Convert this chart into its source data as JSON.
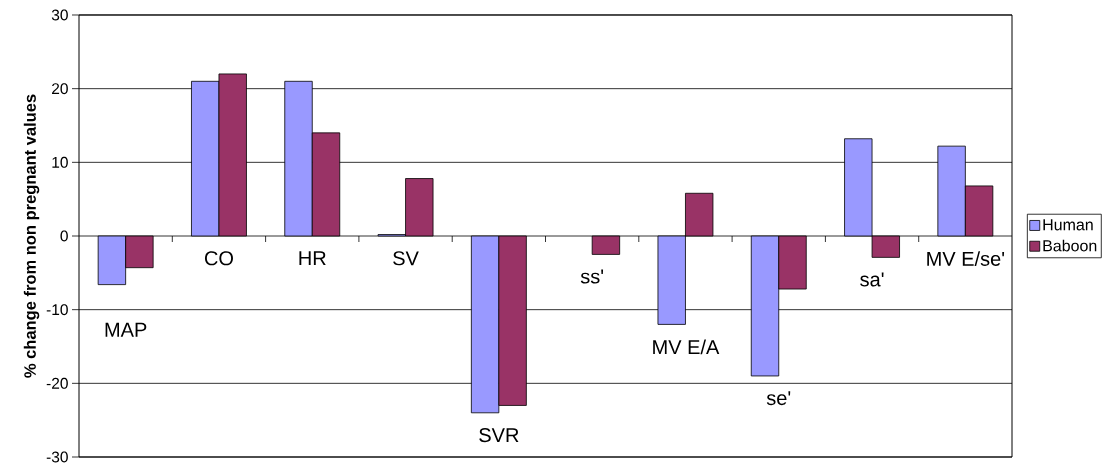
{
  "chart_data": {
    "type": "bar",
    "ylabel": "% change from non pregnant values",
    "categories": [
      "MAP",
      "CO",
      "HR",
      "SV",
      "SVR",
      "ss'",
      "MV E/A",
      "se'",
      "sa'",
      "MV E/se'"
    ],
    "series": [
      {
        "name": "Human",
        "color": "#9999ff",
        "values": [
          -6.6,
          21,
          21,
          0.2,
          -24,
          null,
          -12,
          -19,
          13.2,
          12.2
        ]
      },
      {
        "name": "Baboon",
        "color": "#993366",
        "values": [
          -4.3,
          22,
          14,
          7.8,
          -23,
          -2.5,
          5.8,
          -7.2,
          -2.9,
          6.8
        ]
      }
    ],
    "ylim": [
      -30,
      30
    ],
    "yticks": [
      -30,
      -20,
      -10,
      0,
      10,
      20,
      30
    ],
    "grid": "y",
    "legend": "right"
  }
}
